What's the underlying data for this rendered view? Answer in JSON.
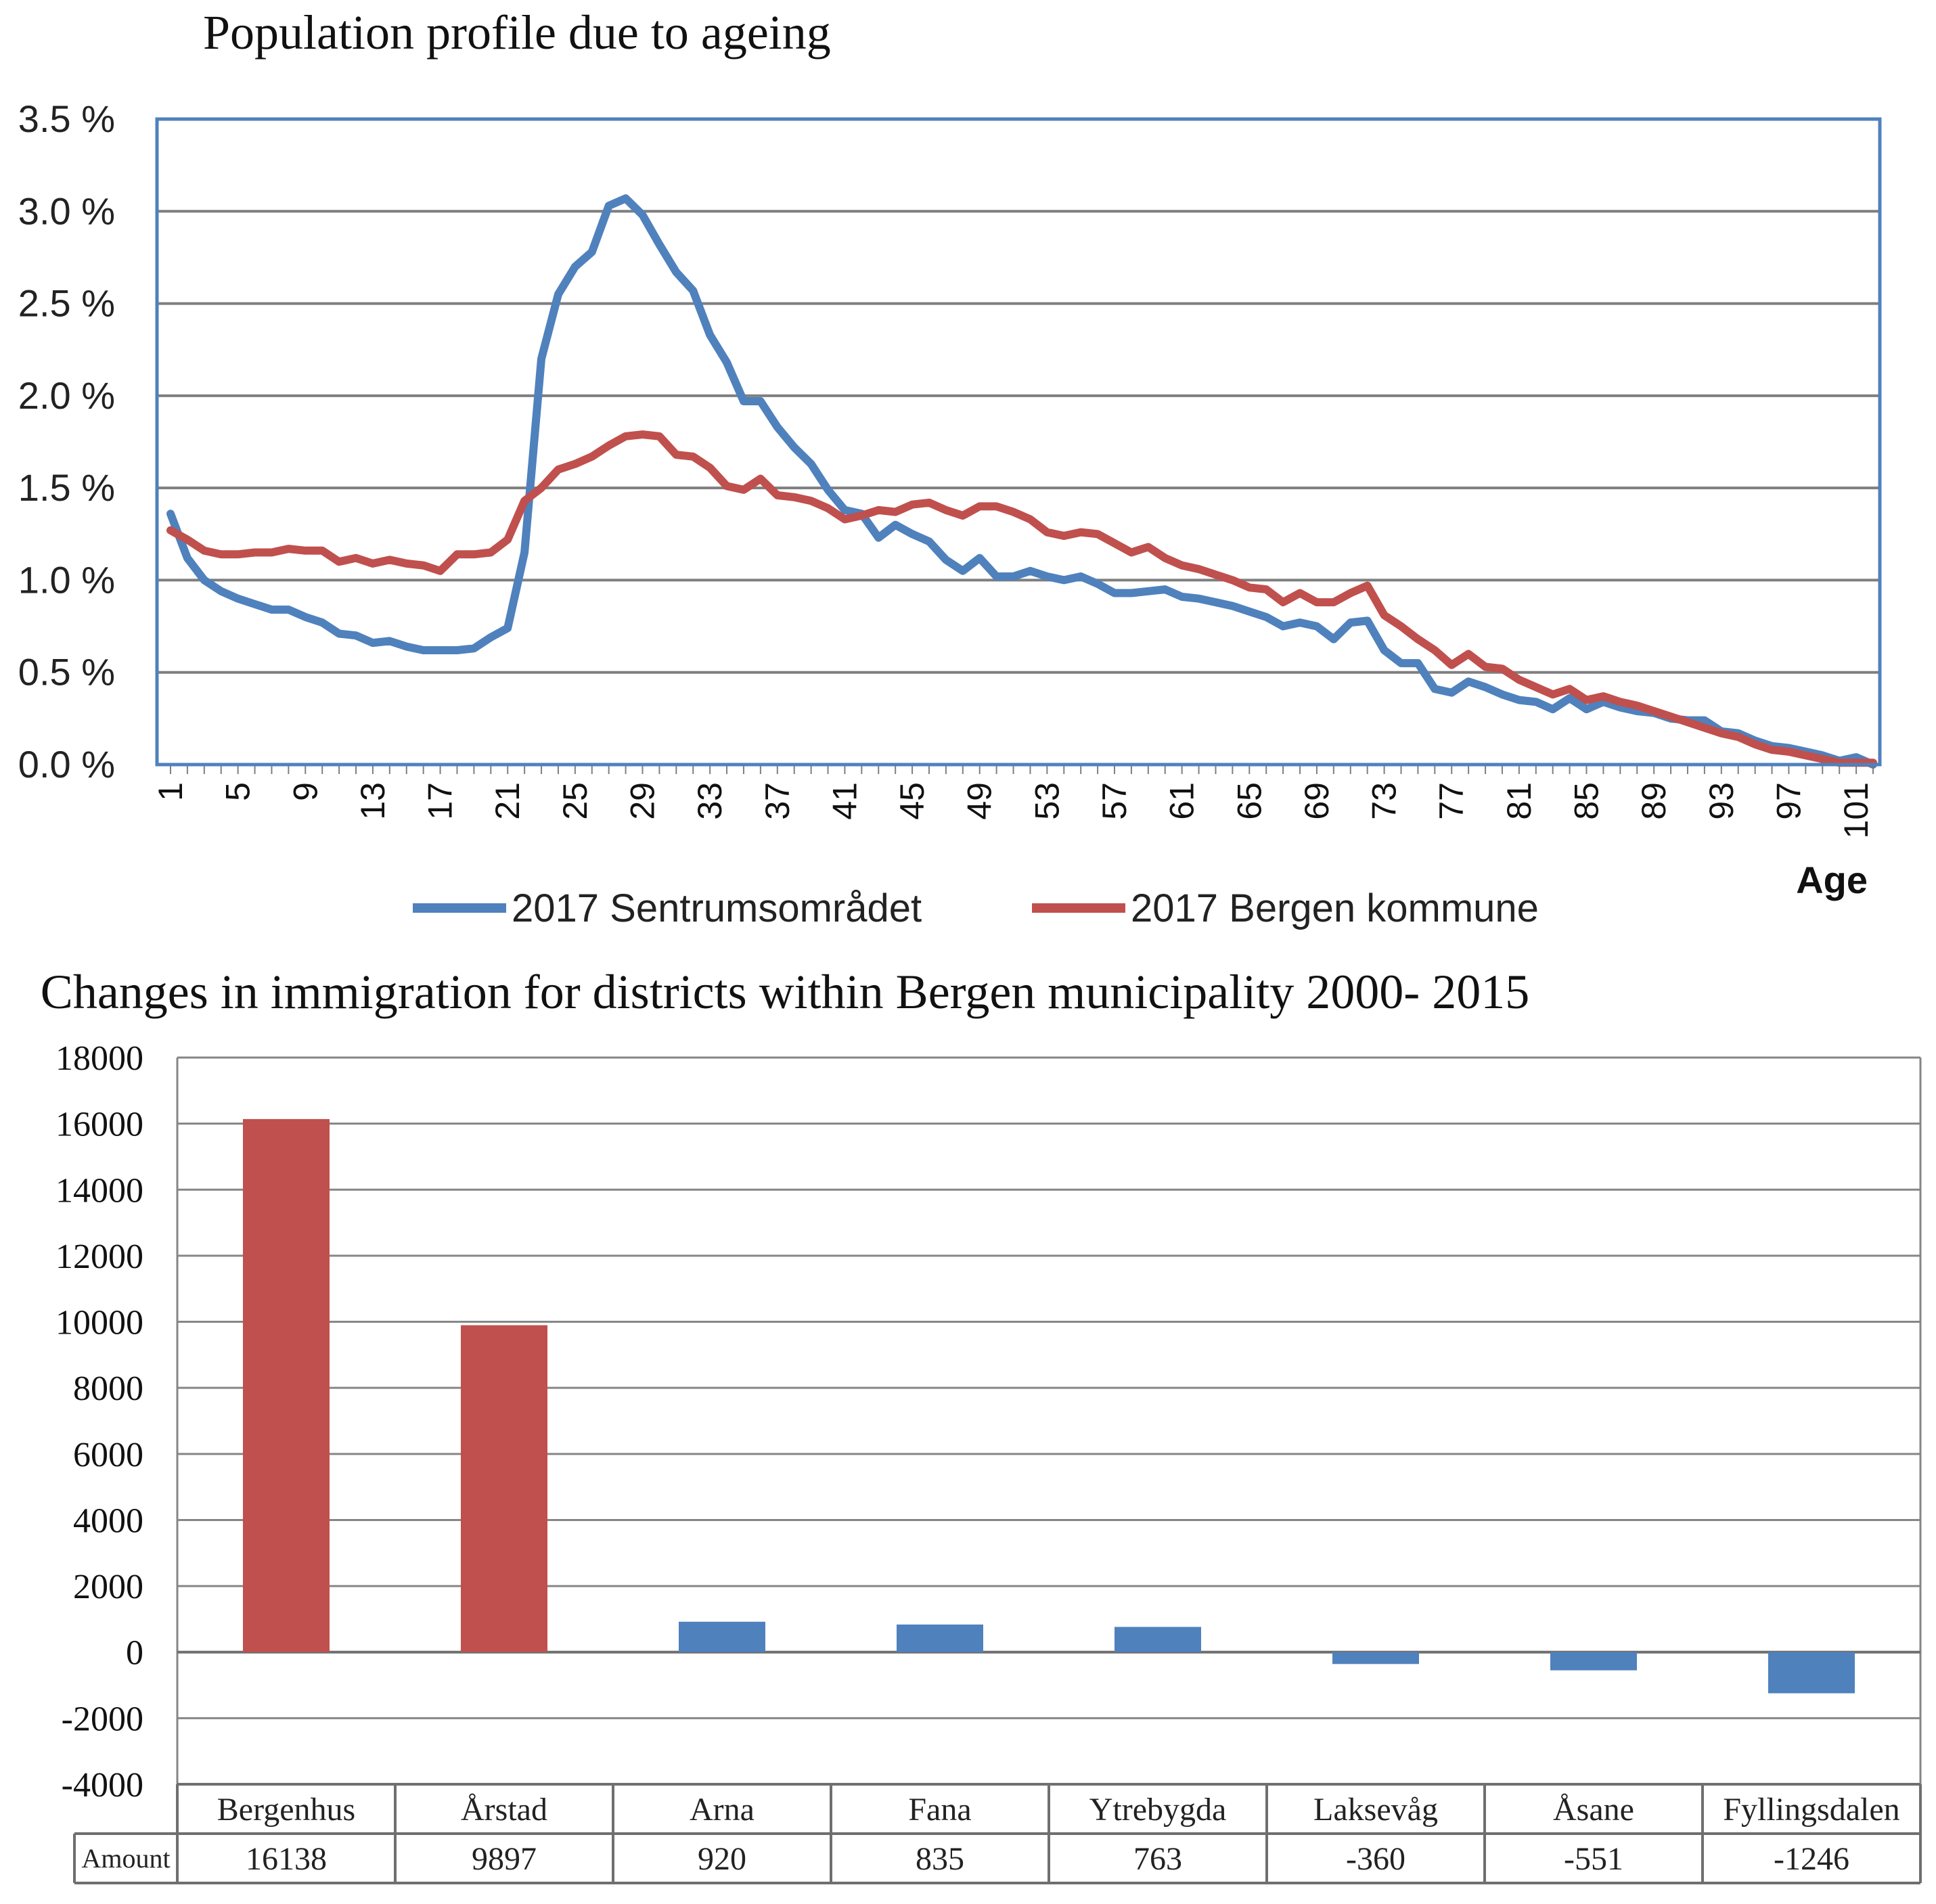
{
  "chart_data": [
    {
      "type": "line",
      "title": "Population profile due to ageing",
      "xlabel": "Age",
      "ylabel": "",
      "ylim": [
        0,
        3.5
      ],
      "yticks": [
        "0.0 %",
        "0.5 %",
        "1.0 %",
        "1.5 %",
        "2.0 %",
        "2.5 %",
        "3.0 %",
        "3.5 %"
      ],
      "x": [
        1,
        2,
        3,
        4,
        5,
        6,
        7,
        8,
        9,
        10,
        11,
        12,
        13,
        14,
        15,
        16,
        17,
        18,
        19,
        20,
        21,
        22,
        23,
        24,
        25,
        26,
        27,
        28,
        29,
        30,
        31,
        32,
        33,
        34,
        35,
        36,
        37,
        38,
        39,
        40,
        41,
        42,
        43,
        44,
        45,
        46,
        47,
        48,
        49,
        50,
        51,
        52,
        53,
        54,
        55,
        56,
        57,
        58,
        59,
        60,
        61,
        62,
        63,
        64,
        65,
        66,
        67,
        68,
        69,
        70,
        71,
        72,
        73,
        74,
        75,
        76,
        77,
        78,
        79,
        80,
        81,
        82,
        83,
        84,
        85,
        86,
        87,
        88,
        89,
        90,
        91,
        92,
        93,
        94,
        95,
        96,
        97,
        98,
        99,
        100,
        101,
        102
      ],
      "xticks": [
        "1",
        "5",
        "9",
        "13",
        "17",
        "21",
        "25",
        "29",
        "33",
        "37",
        "41",
        "45",
        "49",
        "53",
        "57",
        "61",
        "65",
        "69",
        "73",
        "77",
        "81",
        "85",
        "89",
        "93",
        "97",
        "101"
      ],
      "grid": true,
      "legend": "bottom",
      "series": [
        {
          "name": "2017 Sentrumsområdet",
          "color": "#4f81bd",
          "values": [
            1.36,
            1.12,
            1.0,
            0.94,
            0.9,
            0.87,
            0.84,
            0.84,
            0.8,
            0.77,
            0.71,
            0.7,
            0.66,
            0.67,
            0.64,
            0.62,
            0.62,
            0.62,
            0.63,
            0.69,
            0.74,
            1.15,
            2.2,
            2.55,
            2.7,
            2.78,
            3.03,
            3.07,
            2.98,
            2.82,
            2.67,
            2.57,
            2.33,
            2.18,
            1.97,
            1.97,
            1.83,
            1.72,
            1.63,
            1.49,
            1.38,
            1.36,
            1.23,
            1.3,
            1.25,
            1.21,
            1.11,
            1.05,
            1.12,
            1.02,
            1.02,
            1.05,
            1.02,
            1.0,
            1.02,
            0.98,
            0.93,
            0.93,
            0.94,
            0.95,
            0.91,
            0.9,
            0.88,
            0.86,
            0.83,
            0.8,
            0.75,
            0.77,
            0.75,
            0.68,
            0.77,
            0.78,
            0.62,
            0.55,
            0.55,
            0.41,
            0.39,
            0.45,
            0.42,
            0.38,
            0.35,
            0.34,
            0.3,
            0.36,
            0.3,
            0.34,
            0.31,
            0.29,
            0.28,
            0.25,
            0.24,
            0.24,
            0.18,
            0.17,
            0.13,
            0.1,
            0.09,
            0.07,
            0.05,
            0.02,
            0.04,
            0.0
          ]
        },
        {
          "name": "2017 Bergen kommune",
          "color": "#c0504d",
          "values": [
            1.27,
            1.22,
            1.16,
            1.14,
            1.14,
            1.15,
            1.15,
            1.17,
            1.16,
            1.16,
            1.1,
            1.12,
            1.09,
            1.11,
            1.09,
            1.08,
            1.05,
            1.14,
            1.14,
            1.15,
            1.22,
            1.43,
            1.5,
            1.6,
            1.63,
            1.67,
            1.73,
            1.78,
            1.79,
            1.78,
            1.68,
            1.67,
            1.61,
            1.51,
            1.49,
            1.55,
            1.46,
            1.45,
            1.43,
            1.39,
            1.33,
            1.35,
            1.38,
            1.37,
            1.41,
            1.42,
            1.38,
            1.35,
            1.4,
            1.4,
            1.37,
            1.33,
            1.26,
            1.24,
            1.26,
            1.25,
            1.2,
            1.15,
            1.18,
            1.12,
            1.08,
            1.06,
            1.03,
            1.0,
            0.96,
            0.95,
            0.88,
            0.93,
            0.88,
            0.88,
            0.93,
            0.97,
            0.81,
            0.75,
            0.68,
            0.62,
            0.54,
            0.6,
            0.53,
            0.52,
            0.46,
            0.42,
            0.38,
            0.41,
            0.35,
            0.37,
            0.34,
            0.32,
            0.29,
            0.26,
            0.23,
            0.2,
            0.17,
            0.15,
            0.11,
            0.08,
            0.07,
            0.05,
            0.03,
            0.01,
            0.01,
            0.01
          ]
        }
      ]
    },
    {
      "type": "bar",
      "title": "Changes in immigration for districts within Bergen municipality 2000- 2015",
      "xlabel": "",
      "ylabel": "",
      "ylim": [
        -4000,
        18000
      ],
      "yticks": [
        "-4000",
        "-2000",
        "0",
        "2000",
        "4000",
        "6000",
        "8000",
        "10000",
        "12000",
        "14000",
        "16000",
        "18000"
      ],
      "categories": [
        "Bergenhus",
        "Årstad",
        "Arna",
        "Fana",
        "Ytrebygda",
        "Laksevåg",
        "Åsane",
        "Fyllingsdalen"
      ],
      "values": [
        16138,
        9897,
        920,
        835,
        763,
        -360,
        -551,
        -1246
      ],
      "bar_colors": [
        "#c0504d",
        "#c0504d",
        "#4f81bd",
        "#4f81bd",
        "#4f81bd",
        "#4f81bd",
        "#4f81bd",
        "#4f81bd"
      ],
      "table_row_label": "Amount",
      "table_values": [
        "16138",
        "9897",
        "920",
        "835",
        "763",
        "-360",
        "-551",
        "-1246"
      ],
      "grid": true
    }
  ]
}
